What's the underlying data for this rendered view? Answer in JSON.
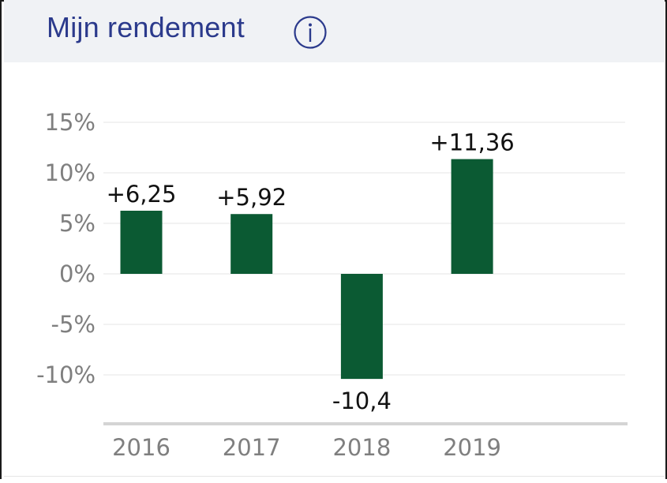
{
  "header": {
    "title": "Mijn rendement",
    "info_icon": "info-circle-icon"
  },
  "colors": {
    "accent": "#2b3a8c",
    "bar": "#0b5a33",
    "header_bg": "#f0f2f5",
    "grid": "#eeeeee",
    "axis_text": "#7f7f7f",
    "axis_line": "#d4d4d4"
  },
  "chart_data": {
    "type": "bar",
    "title": "",
    "xlabel": "",
    "ylabel": "",
    "categories": [
      "2016",
      "2017",
      "2018",
      "2019"
    ],
    "values": [
      6.25,
      5.92,
      -10.4,
      11.36
    ],
    "data_labels": [
      "+6,25",
      "+5,92",
      "-10,4",
      "+11,36"
    ],
    "yticks": [
      15,
      10,
      5,
      0,
      -5,
      -10
    ],
    "ytick_labels": [
      "15%",
      "10%",
      "5%",
      "0%",
      "-5%",
      "-10%"
    ],
    "ylim": [
      -15,
      15
    ],
    "grid": true,
    "legend": false
  }
}
